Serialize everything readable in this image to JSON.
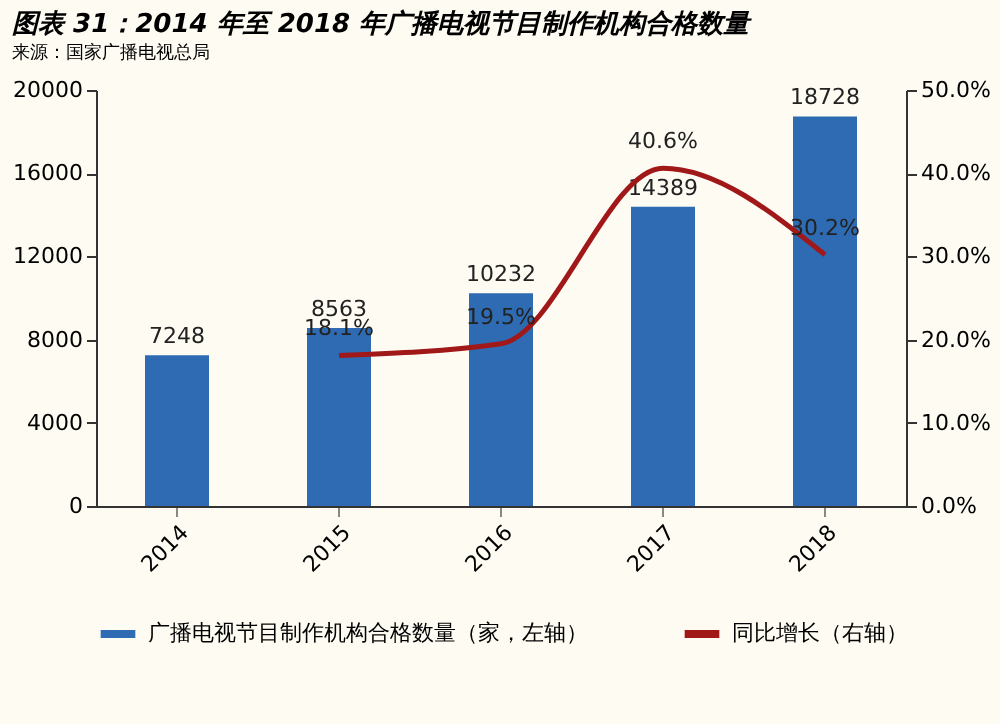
{
  "chart_data": {
    "type": "bar",
    "title": "图表 31：2014 年至 2018 年广播电视节目制作机构合格数量",
    "categories": [
      "2014",
      "2015",
      "2016",
      "2017",
      "2018"
    ],
    "series": [
      {
        "name": "广播电视节目制作机构合格数量（家，左轴）",
        "color": "#2e6bb3",
        "values": [
          7248,
          8563,
          10232,
          14389,
          18728
        ],
        "value_labels": [
          "7248",
          "8563",
          "10232",
          "14389",
          "18728"
        ]
      },
      {
        "name": "同比增长（右轴）",
        "type": "line",
        "axis": "y2",
        "color": "#a01818",
        "values": [
          null,
          18.1,
          19.5,
          40.6,
          30.2
        ],
        "value_labels": [
          null,
          "18.1%",
          "19.5%",
          "40.6%",
          "30.2%"
        ]
      }
    ],
    "ylim": [
      0,
      20000
    ],
    "yticks": [
      0,
      4000,
      8000,
      12000,
      16000,
      20000
    ],
    "y2lim": [
      0,
      50
    ],
    "y2ticks": [
      {
        "value": 0,
        "label": "0.0%"
      },
      {
        "value": 10,
        "label": "10.0%"
      },
      {
        "value": 20,
        "label": "20.0%"
      },
      {
        "value": 30,
        "label": "30.0%"
      },
      {
        "value": 40,
        "label": "40.0%"
      },
      {
        "value": 50,
        "label": "50.0%"
      }
    ],
    "grid": false,
    "legend": "bottom",
    "marker": "none",
    "line_style": "solid",
    "annotations": [
      "来源：国家广播电视总局"
    ]
  }
}
